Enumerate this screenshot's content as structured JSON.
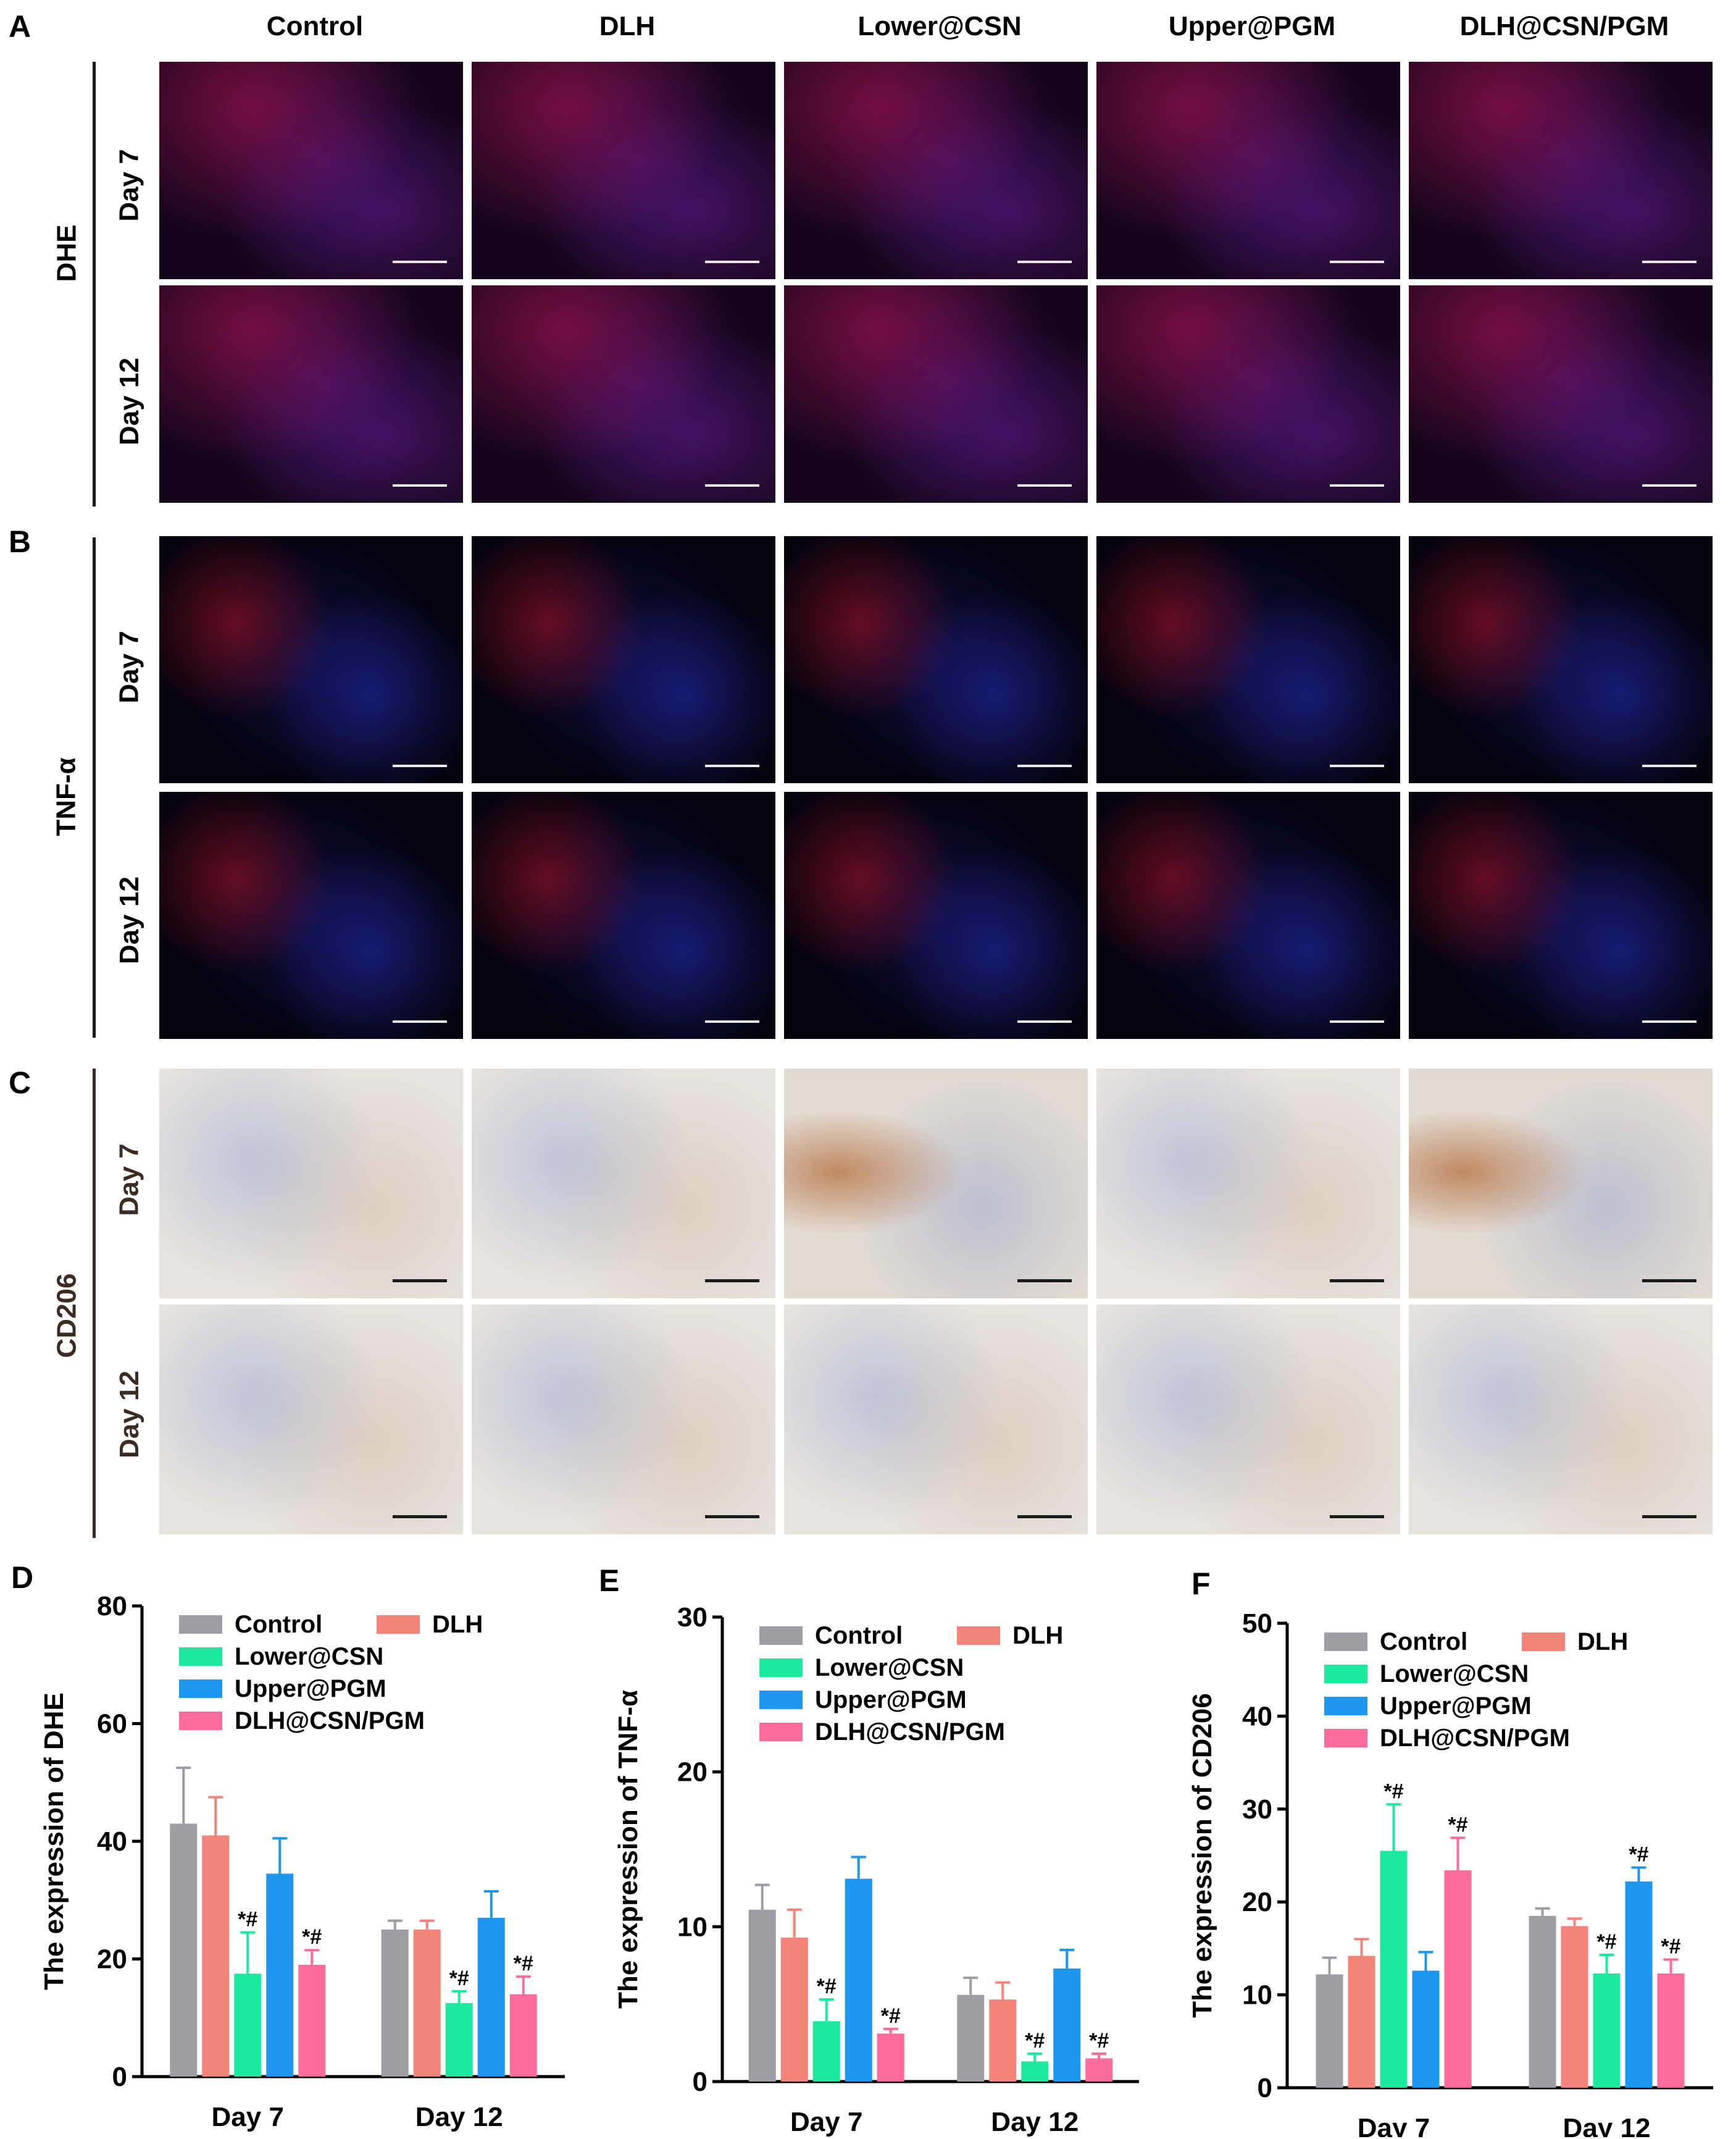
{
  "panels": {
    "A": {
      "letter": "A",
      "stain": "DHE"
    },
    "B": {
      "letter": "B",
      "stain": "TNF-α"
    },
    "C": {
      "letter": "C",
      "stain": "CD206"
    },
    "D": {
      "letter": "D"
    },
    "E": {
      "letter": "E"
    },
    "F": {
      "letter": "F"
    }
  },
  "columns": [
    "Control",
    "DLH",
    "Lower@CSN",
    "Upper@PGM",
    "DLH@CSN/PGM"
  ],
  "rows": [
    "Day 7",
    "Day 12"
  ],
  "colors": {
    "Control": "#9d9ea3",
    "DLH": "#f4837a",
    "Lower@CSN": "#1de99e",
    "Upper@PGM": "#1d96f0",
    "DLH@CSN/PGM": "#fb6b9d"
  },
  "chart_data": [
    {
      "type": "bar",
      "panel": "D",
      "ylabel": "The expression of DHE",
      "categories": [
        "Day 7",
        "Day 12"
      ],
      "ylim": [
        0,
        80
      ],
      "yticks": [
        0,
        20,
        40,
        60,
        80
      ],
      "legend_placement": "top-left",
      "series": [
        {
          "name": "Control",
          "values": [
            43,
            25
          ],
          "errors": [
            9.5,
            1.5
          ],
          "sig": [
            "",
            ""
          ]
        },
        {
          "name": "DLH",
          "values": [
            41,
            25
          ],
          "errors": [
            6.5,
            1.5
          ],
          "sig": [
            "",
            ""
          ]
        },
        {
          "name": "Lower@CSN",
          "values": [
            17.5,
            12.5
          ],
          "errors": [
            7,
            2
          ],
          "sig": [
            "*#",
            "*#"
          ]
        },
        {
          "name": "Upper@PGM",
          "values": [
            34.5,
            27
          ],
          "errors": [
            6,
            4.5
          ],
          "sig": [
            "",
            ""
          ]
        },
        {
          "name": "DLH@CSN/PGM",
          "values": [
            19,
            14
          ],
          "errors": [
            2.5,
            3
          ],
          "sig": [
            "*#",
            "*#"
          ]
        }
      ]
    },
    {
      "type": "bar",
      "panel": "E",
      "ylabel": "The expression of TNF-α",
      "categories": [
        "Day 7",
        "Day 12"
      ],
      "ylim": [
        0,
        30
      ],
      "yticks": [
        0,
        10,
        20,
        30
      ],
      "legend_placement": "top-left",
      "series": [
        {
          "name": "Control",
          "values": [
            11.1,
            5.6
          ],
          "errors": [
            1.6,
            1.1
          ],
          "sig": [
            "",
            ""
          ]
        },
        {
          "name": "DLH",
          "values": [
            9.3,
            5.3
          ],
          "errors": [
            1.8,
            1.1
          ],
          "sig": [
            "",
            ""
          ]
        },
        {
          "name": "Lower@CSN",
          "values": [
            3.9,
            1.3
          ],
          "errors": [
            1.4,
            0.5
          ],
          "sig": [
            "*#",
            "*#"
          ]
        },
        {
          "name": "Upper@PGM",
          "values": [
            13.1,
            7.3
          ],
          "errors": [
            1.4,
            1.2
          ],
          "sig": [
            "",
            ""
          ]
        },
        {
          "name": "DLH@CSN/PGM",
          "values": [
            3.1,
            1.5
          ],
          "errors": [
            0.3,
            0.3
          ],
          "sig": [
            "*#",
            "*#"
          ]
        }
      ]
    },
    {
      "type": "bar",
      "panel": "F",
      "ylabel": "The expression of CD206",
      "categories": [
        "Day 7",
        "Day 12"
      ],
      "ylim": [
        0,
        50
      ],
      "yticks": [
        0,
        10,
        20,
        30,
        40,
        50
      ],
      "legend_placement": "top-left",
      "series": [
        {
          "name": "Control",
          "values": [
            12.2,
            18.5
          ],
          "errors": [
            1.8,
            0.8
          ],
          "sig": [
            "",
            ""
          ]
        },
        {
          "name": "DLH",
          "values": [
            14.2,
            17.4
          ],
          "errors": [
            1.8,
            0.8
          ],
          "sig": [
            "",
            ""
          ]
        },
        {
          "name": "Lower@CSN",
          "values": [
            25.5,
            12.3
          ],
          "errors": [
            5,
            2
          ],
          "sig": [
            "*#",
            "*#"
          ]
        },
        {
          "name": "Upper@PGM",
          "values": [
            12.6,
            22.2
          ],
          "errors": [
            2,
            1.5
          ],
          "sig": [
            "",
            "*#"
          ]
        },
        {
          "name": "DLH@CSN/PGM",
          "values": [
            23.4,
            12.3
          ],
          "errors": [
            3.5,
            1.5
          ],
          "sig": [
            "*#",
            "*#"
          ]
        }
      ]
    }
  ]
}
